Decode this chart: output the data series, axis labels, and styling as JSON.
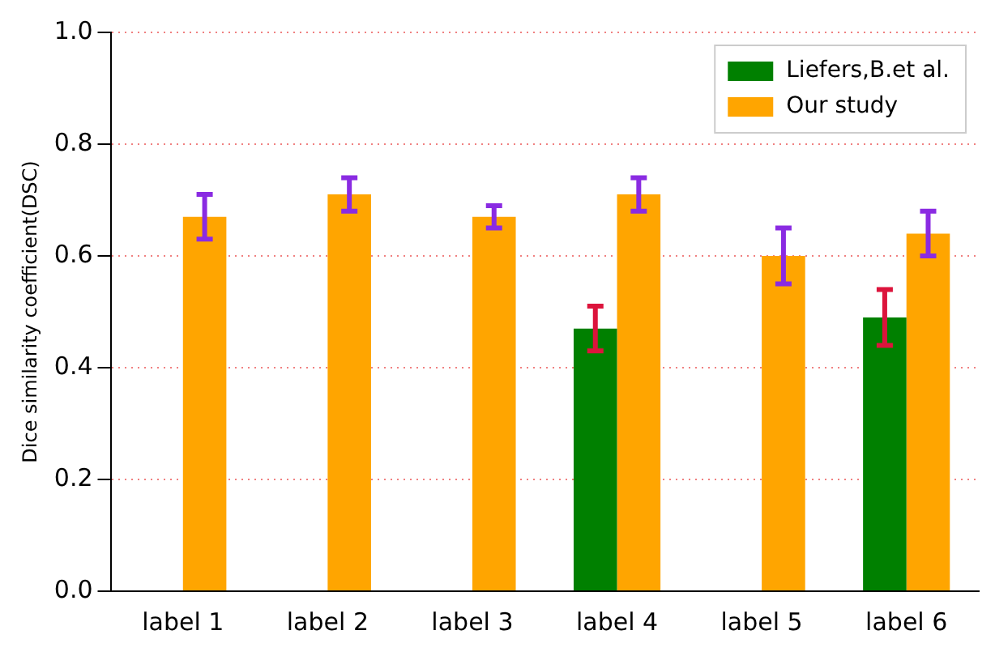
{
  "chart_data": {
    "type": "bar",
    "ylabel": "Dice similarity coefficient(DSC)",
    "categories": [
      "label 1",
      "label 2",
      "label 3",
      "label 4",
      "label 5",
      "label 6"
    ],
    "series": [
      {
        "name": "Liefers,B.et al.",
        "color": "#008000",
        "values": [
          0,
          0,
          0,
          0.47,
          0,
          0.49
        ],
        "errors": [
          null,
          null,
          null,
          0.04,
          null,
          0.05
        ]
      },
      {
        "name": "Our study",
        "color": "#ffa500",
        "values": [
          0.67,
          0.71,
          0.67,
          0.71,
          0.6,
          0.64
        ],
        "errors": [
          0.04,
          0.03,
          0.02,
          0.03,
          0.05,
          0.04
        ]
      }
    ],
    "ylim": [
      0,
      1
    ],
    "yticks": [
      {
        "value": 0,
        "label": "0.0"
      },
      0.2,
      0.4,
      0.6,
      0.8,
      {
        "value": 1,
        "label": "1.0"
      }
    ],
    "grid": "y",
    "legend": "top right"
  }
}
